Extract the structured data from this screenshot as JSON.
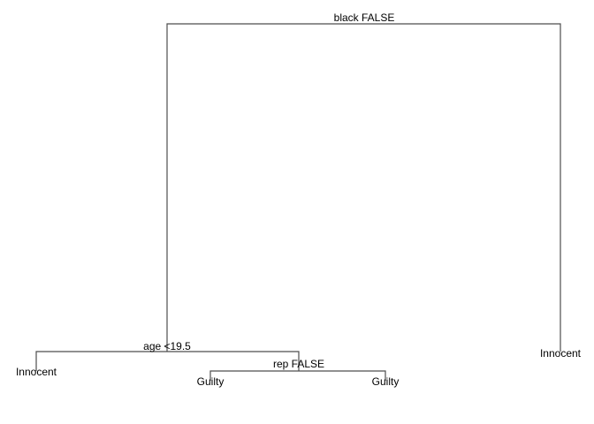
{
  "tree": {
    "root": {
      "split": "black FALSE"
    },
    "inner_left": {
      "split": "age <19.5"
    },
    "inner_right": {
      "split": "rep FALSE"
    },
    "leaves": {
      "leaf1": "Innocent",
      "leaf2": "Guilty",
      "leaf3": "Guilty",
      "leaf4": "Innocent"
    }
  },
  "colors": {
    "edge": "#4d4d4d",
    "text": "#000000"
  }
}
